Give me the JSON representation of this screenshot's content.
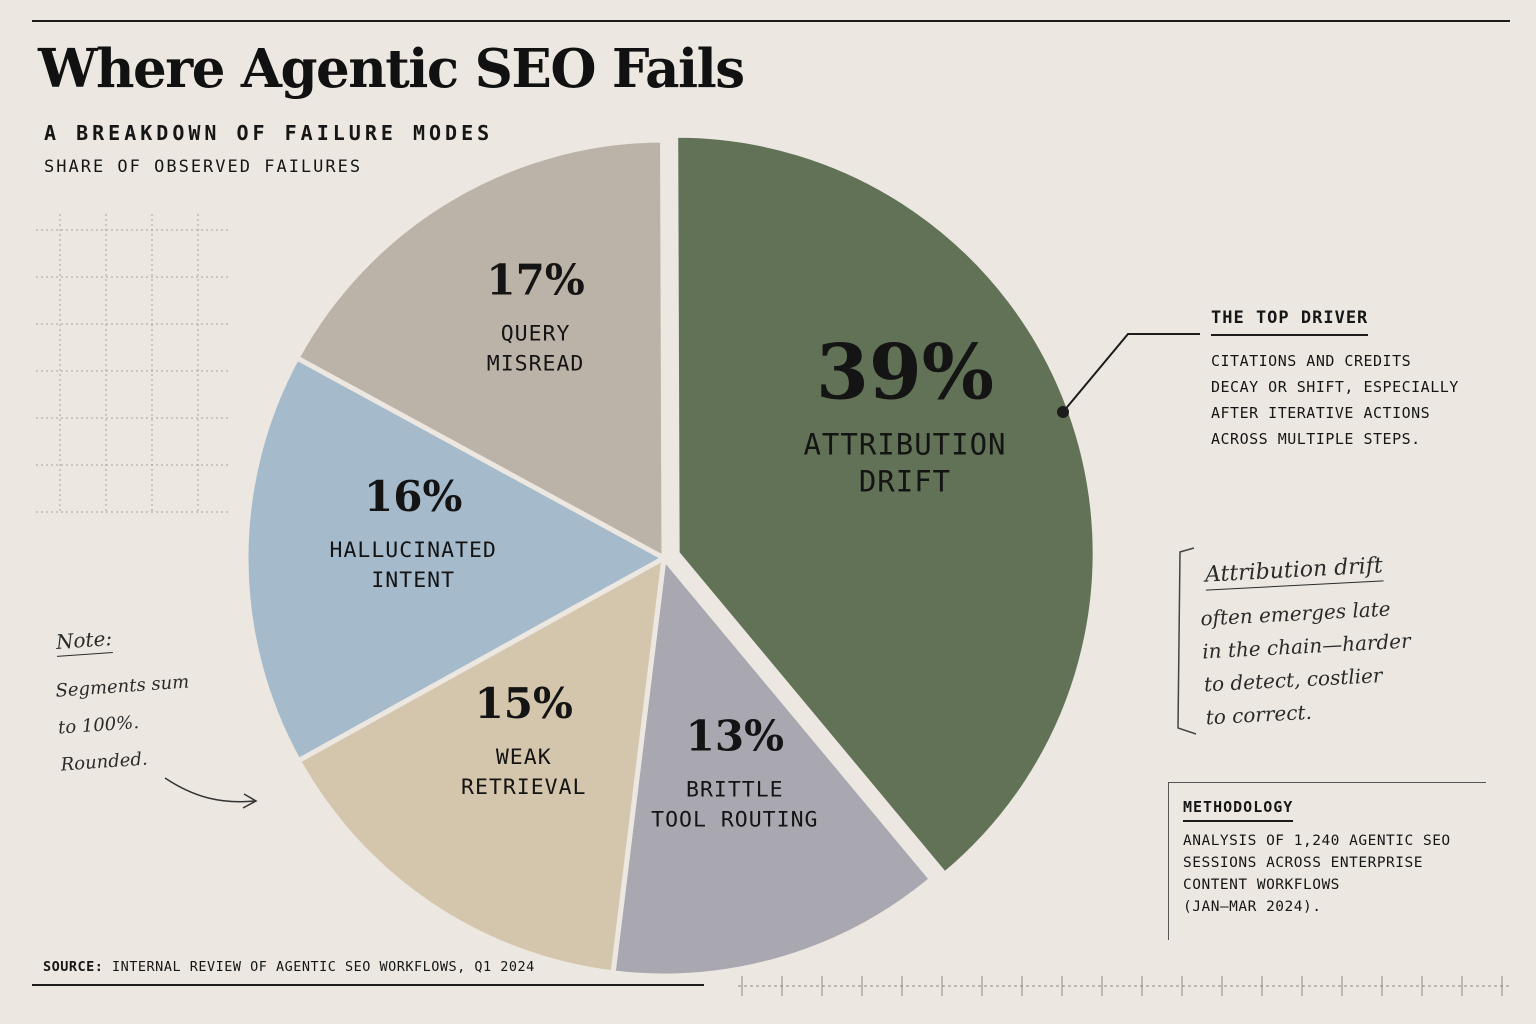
{
  "title": "Where Agentic SEO Fails",
  "subtitle": "A BREAKDOWN OF FAILURE MODES",
  "caption": "SHARE OF OBSERVED FAILURES",
  "colors": {
    "background": "#ece8e1",
    "attribution_drift": "#627256",
    "brittle_tool_routing": "#a9a8b0",
    "weak_retrieval": "#d4c6ac",
    "hallucinated_intent": "#a5bacb",
    "query_misread": "#bbb3a7"
  },
  "chart_data": {
    "type": "pie",
    "unit": "%",
    "slices": [
      {
        "label": "ATTRIBUTION DRIFT",
        "lines": [
          "ATTRIBUTION",
          "DRIFT"
        ],
        "value": 39,
        "pct_text": "39%",
        "color": "#627256",
        "exploded": true
      },
      {
        "label": "BRITTLE TOOL ROUTING",
        "lines": [
          "BRITTLE",
          "TOOL ROUTING"
        ],
        "value": 13,
        "pct_text": "13%",
        "color": "#a9a8b0"
      },
      {
        "label": "WEAK RETRIEVAL",
        "lines": [
          "WEAK",
          "RETRIEVAL"
        ],
        "value": 15,
        "pct_text": "15%",
        "color": "#d4c6ac"
      },
      {
        "label": "HALLUCINATED INTENT",
        "lines": [
          "HALLUCINATED",
          "INTENT"
        ],
        "value": 16,
        "pct_text": "16%",
        "color": "#a5bacb"
      },
      {
        "label": "QUERY MISREAD",
        "lines": [
          "QUERY",
          "MISREAD"
        ],
        "value": 17,
        "pct_text": "17%",
        "color": "#bbb3a7"
      }
    ]
  },
  "top_driver": {
    "title": "THE TOP DRIVER",
    "body": "CITATIONS AND CREDITS\nDECAY OR SHIFT, ESPECIALLY\nAFTER ITERATIVE ACTIONS\nACROSS MULTIPLE STEPS."
  },
  "aside": {
    "heading": "Attribution drift",
    "body": "often emerges late\nin the chain—harder\nto detect, costlier\nto correct."
  },
  "note": {
    "heading": "Note:",
    "body": "Segments sum\nto 100%.\nRounded."
  },
  "methodology": {
    "title": "METHODOLOGY",
    "body": "ANALYSIS OF 1,240 AGENTIC SEO\nSESSIONS ACROSS ENTERPRISE\nCONTENT WORKFLOWS\n(JAN–MAR 2024)."
  },
  "source": {
    "label": "SOURCE:",
    "text": "INTERNAL REVIEW OF AGENTIC SEO WORKFLOWS, Q1 2024"
  }
}
